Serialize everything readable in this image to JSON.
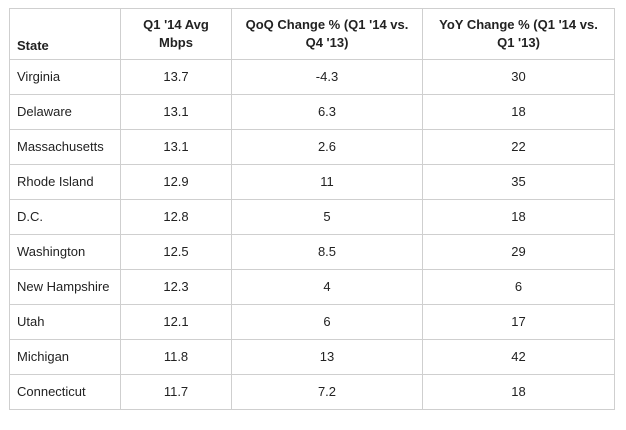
{
  "table": {
    "headers": [
      "State",
      "Q1 '14 Avg Mbps",
      "QoQ Change % (Q1 '14 vs. Q4 '13)",
      "YoY Change % (Q1 '14 vs. Q1 '13)"
    ],
    "rows": [
      {
        "state": "Virginia",
        "avg_mbps": "13.7",
        "qoq": "-4.3",
        "yoy": "30"
      },
      {
        "state": "Delaware",
        "avg_mbps": "13.1",
        "qoq": "6.3",
        "yoy": "18"
      },
      {
        "state": "Massachusetts",
        "avg_mbps": "13.1",
        "qoq": "2.6",
        "yoy": "22"
      },
      {
        "state": "Rhode Island",
        "avg_mbps": "12.9",
        "qoq": "11",
        "yoy": "35"
      },
      {
        "state": "D.C.",
        "avg_mbps": "12.8",
        "qoq": "5",
        "yoy": "18"
      },
      {
        "state": "Washington",
        "avg_mbps": "12.5",
        "qoq": "8.5",
        "yoy": "29"
      },
      {
        "state": "New Hampshire",
        "avg_mbps": "12.3",
        "qoq": "4",
        "yoy": "6"
      },
      {
        "state": "Utah",
        "avg_mbps": "12.1",
        "qoq": "6",
        "yoy": "17"
      },
      {
        "state": "Michigan",
        "avg_mbps": "11.8",
        "qoq": "13",
        "yoy": "42"
      },
      {
        "state": "Connecticut",
        "avg_mbps": "11.7",
        "qoq": "7.2",
        "yoy": "18"
      }
    ]
  },
  "chart_data": {
    "type": "table",
    "columns": [
      "State",
      "Q1 '14 Avg Mbps",
      "QoQ Change % (Q1 '14 vs. Q4 '13)",
      "YoY Change % (Q1 '14 vs. Q1 '13)"
    ],
    "rows": [
      [
        "Virginia",
        13.7,
        -4.3,
        30
      ],
      [
        "Delaware",
        13.1,
        6.3,
        18
      ],
      [
        "Massachusetts",
        13.1,
        2.6,
        22
      ],
      [
        "Rhode Island",
        12.9,
        11,
        35
      ],
      [
        "D.C.",
        12.8,
        5,
        18
      ],
      [
        "Washington",
        12.5,
        8.5,
        29
      ],
      [
        "New Hampshire",
        12.3,
        4,
        6
      ],
      [
        "Utah",
        12.1,
        6,
        17
      ],
      [
        "Michigan",
        11.8,
        13,
        42
      ],
      [
        "Connecticut",
        11.7,
        7.2,
        18
      ]
    ]
  }
}
